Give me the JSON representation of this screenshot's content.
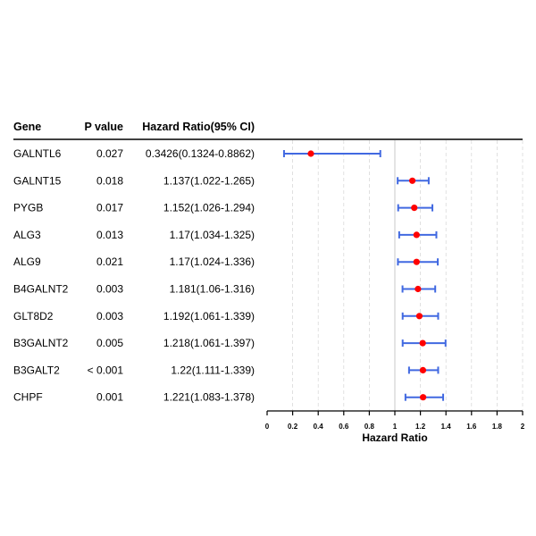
{
  "headers": {
    "gene": "Gene",
    "p_value": "P value",
    "hr_ci": "Hazard Ratio(95% CI)"
  },
  "rows": [
    {
      "gene": "GALNTL6",
      "p_value": "0.027",
      "hr_text": "0.3426(0.1324-0.8862)"
    },
    {
      "gene": "GALNT15",
      "p_value": "0.018",
      "hr_text": "1.137(1.022-1.265)"
    },
    {
      "gene": "PYGB",
      "p_value": "0.017",
      "hr_text": "1.152(1.026-1.294)"
    },
    {
      "gene": "ALG3",
      "p_value": "0.013",
      "hr_text": "1.17(1.034-1.325)"
    },
    {
      "gene": "ALG9",
      "p_value": "0.021",
      "hr_text": "1.17(1.024-1.336)"
    },
    {
      "gene": "B4GALNT2",
      "p_value": "0.003",
      "hr_text": "1.181(1.06-1.316)"
    },
    {
      "gene": "GLT8D2",
      "p_value": "0.003",
      "hr_text": "1.192(1.061-1.339)"
    },
    {
      "gene": "B3GALNT2",
      "p_value": "0.005",
      "hr_text": "1.218(1.061-1.397)"
    },
    {
      "gene": "B3GALT2",
      "p_value": "< 0.001",
      "hr_text": "1.22(1.111-1.339)"
    },
    {
      "gene": "CHPF",
      "p_value": "0.001",
      "hr_text": "1.221(1.083-1.378)"
    }
  ],
  "chart_data": {
    "type": "scatter",
    "subtype": "forest",
    "xlabel": "Hazard Ratio",
    "xlim": [
      0,
      2
    ],
    "x_ticks": [
      "0",
      "0.2",
      "0.4",
      "0.6",
      "0.8",
      "1",
      "1.2",
      "1.4",
      "1.6",
      "1.8",
      "2"
    ],
    "reference_line": 1,
    "grid": true,
    "categories": [
      "GALNTL6",
      "GALNT15",
      "PYGB",
      "ALG3",
      "ALG9",
      "B4GALNT2",
      "GLT8D2",
      "B3GALNT2",
      "B3GALT2",
      "CHPF"
    ],
    "hr": [
      0.3426,
      1.137,
      1.152,
      1.17,
      1.17,
      1.181,
      1.192,
      1.218,
      1.22,
      1.221
    ],
    "lower": [
      0.1324,
      1.022,
      1.026,
      1.034,
      1.024,
      1.06,
      1.061,
      1.061,
      1.111,
      1.083
    ],
    "upper": [
      0.8862,
      1.265,
      1.294,
      1.325,
      1.336,
      1.316,
      1.339,
      1.397,
      1.339,
      1.378
    ],
    "colors": {
      "point": "#ff0000",
      "ci": "#4169e1",
      "refline": "#c8c8c8",
      "grid": "#d9d9d9",
      "axis": "#000000"
    }
  }
}
